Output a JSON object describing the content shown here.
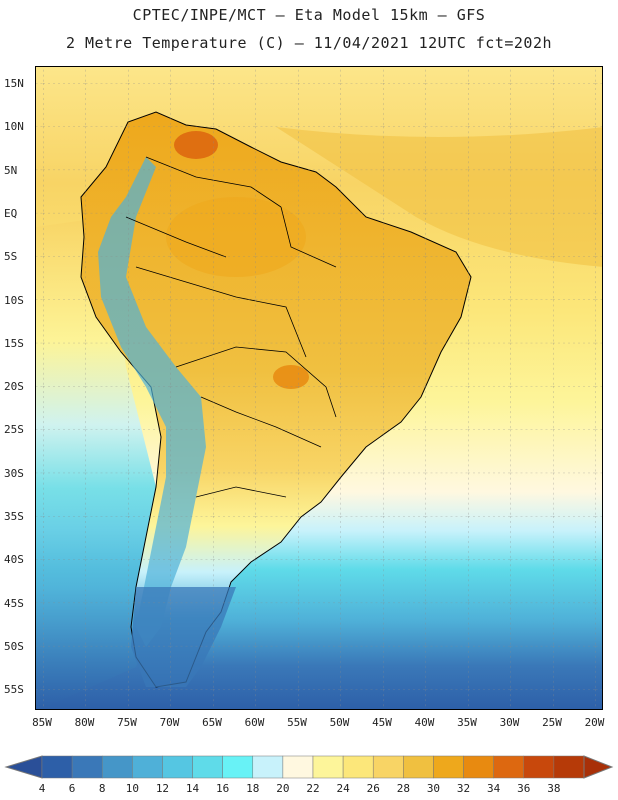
{
  "title": {
    "line1": "CPTEC/INPE/MCT –  Eta Model 15km – GFS",
    "line2": "2 Metre Temperature (C) – 11/04/2021 12UTC fct=202h"
  },
  "lat_labels": [
    "15N",
    "10N",
    "5N",
    "EQ",
    "5S",
    "10S",
    "15S",
    "20S",
    "25S",
    "30S",
    "35S",
    "40S",
    "45S",
    "50S",
    "55S"
  ],
  "lon_labels": [
    "85W",
    "80W",
    "75W",
    "70W",
    "65W",
    "60W",
    "55W",
    "50W",
    "45W",
    "40W",
    "35W",
    "30W",
    "25W",
    "20W"
  ],
  "colorbar": {
    "labels": [
      "4",
      "6",
      "8",
      "10",
      "12",
      "14",
      "16",
      "18",
      "20",
      "22",
      "24",
      "26",
      "28",
      "30",
      "32",
      "34",
      "36",
      "38"
    ],
    "colors": [
      "#2d5fa8",
      "#3a78b8",
      "#4596c8",
      "#4fb0d8",
      "#55c6e2",
      "#5fdbe9",
      "#68f2f6",
      "#c8f2fb",
      "#fff8e0",
      "#fdf59a",
      "#fce77a",
      "#f8d465",
      "#f0c040",
      "#eea81c",
      "#e88a10",
      "#dd6810",
      "#c8480c",
      "#b63a08"
    ]
  }
}
